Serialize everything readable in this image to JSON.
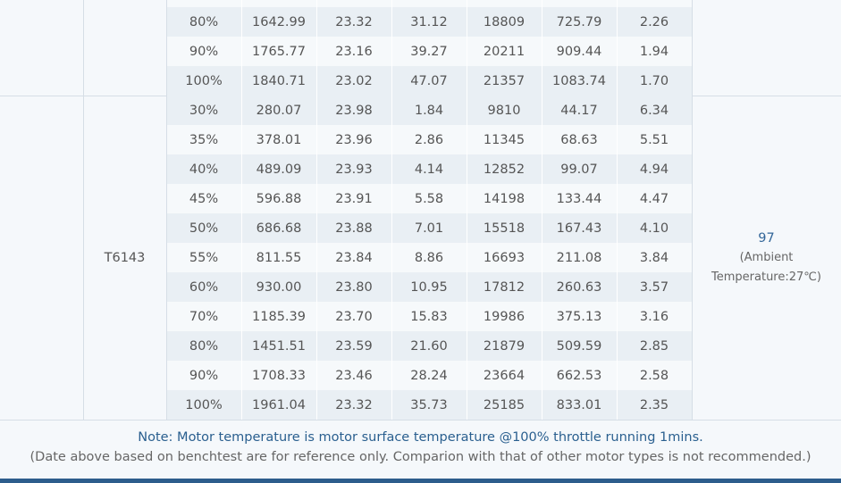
{
  "table": {
    "groups": [
      {
        "rows": [
          [
            "80%",
            "1642.99",
            "23.32",
            "31.12",
            "18809",
            "725.79",
            "2.26"
          ],
          [
            "90%",
            "1765.77",
            "23.16",
            "39.27",
            "20211",
            "909.44",
            "1.94"
          ],
          [
            "100%",
            "1840.71",
            "23.02",
            "47.07",
            "21357",
            "1083.74",
            "1.70"
          ]
        ]
      },
      {
        "motor": "T6143",
        "rows": [
          [
            "30%",
            "280.07",
            "23.98",
            "1.84",
            "9810",
            "44.17",
            "6.34"
          ],
          [
            "35%",
            "378.01",
            "23.96",
            "2.86",
            "11345",
            "68.63",
            "5.51"
          ],
          [
            "40%",
            "489.09",
            "23.93",
            "4.14",
            "12852",
            "99.07",
            "4.94"
          ],
          [
            "45%",
            "596.88",
            "23.91",
            "5.58",
            "14198",
            "133.44",
            "4.47"
          ],
          [
            "50%",
            "686.68",
            "23.88",
            "7.01",
            "15518",
            "167.43",
            "4.10"
          ],
          [
            "55%",
            "811.55",
            "23.84",
            "8.86",
            "16693",
            "211.08",
            "3.84"
          ],
          [
            "60%",
            "930.00",
            "23.80",
            "10.95",
            "17812",
            "260.63",
            "3.57"
          ],
          [
            "70%",
            "1185.39",
            "23.70",
            "15.83",
            "19986",
            "375.13",
            "3.16"
          ],
          [
            "80%",
            "1451.51",
            "23.59",
            "21.60",
            "21879",
            "509.59",
            "2.85"
          ],
          [
            "90%",
            "1708.33",
            "23.46",
            "28.24",
            "23664",
            "662.53",
            "2.58"
          ],
          [
            "100%",
            "1961.04",
            "23.32",
            "35.73",
            "25185",
            "833.01",
            "2.35"
          ]
        ],
        "temperature": {
          "value": "97",
          "lines": [
            "(Ambient",
            "Temperature:27℃)"
          ]
        }
      }
    ]
  },
  "notes": [
    "Note: Motor temperature is motor surface temperature @100% throttle running 1mins.",
    "(Date above based on benchtest are for reference only. Comparion with that of other motor types is not recommended.)"
  ]
}
